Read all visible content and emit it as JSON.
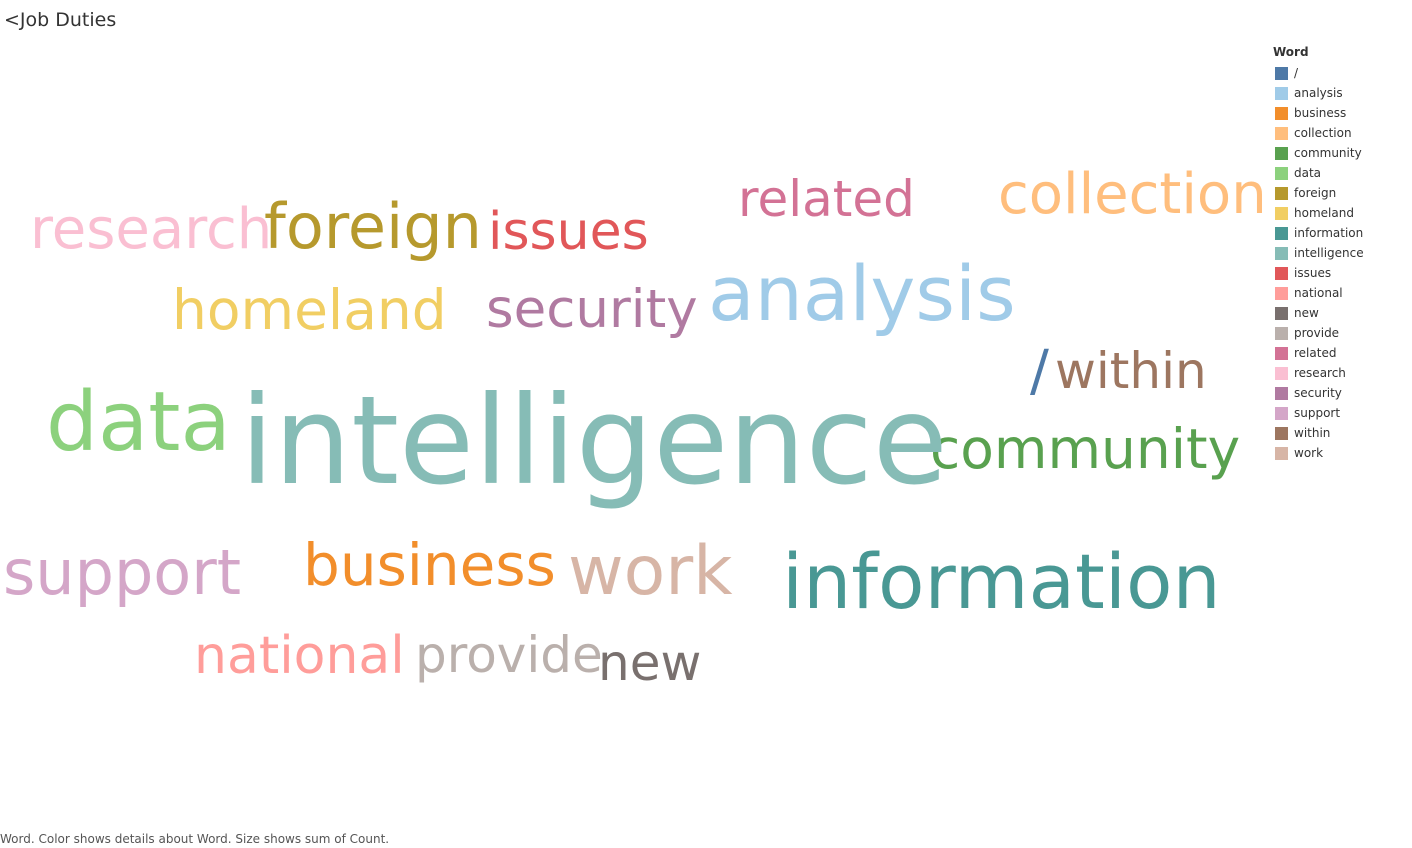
{
  "header": {
    "back_title": "<Job Duties"
  },
  "footer": {
    "caption": "Word.  Color shows details about Word.  Size shows sum of Count."
  },
  "legend": {
    "title": "Word"
  },
  "chart_data": {
    "type": "wordcloud",
    "title": "",
    "legend_placement": "right",
    "words": [
      {
        "word": "/",
        "color": "#4e79a7",
        "count": 22
      },
      {
        "word": "analysis",
        "color": "#a0cbe8",
        "count": 30
      },
      {
        "word": "business",
        "color": "#f28e2b",
        "count": 24
      },
      {
        "word": "collection",
        "color": "#ffbe7d",
        "count": 22
      },
      {
        "word": "community",
        "color": "#59a14f",
        "count": 24
      },
      {
        "word": "data",
        "color": "#8cd17d",
        "count": 32
      },
      {
        "word": "foreign",
        "color": "#b6992d",
        "count": 23
      },
      {
        "word": "homeland",
        "color": "#f1ce63",
        "count": 22
      },
      {
        "word": "information",
        "color": "#499894",
        "count": 32
      },
      {
        "word": "intelligence",
        "color": "#86bcb6",
        "count": 45
      },
      {
        "word": "issues",
        "color": "#e15759",
        "count": 22
      },
      {
        "word": "national",
        "color": "#ff9d9a",
        "count": 21
      },
      {
        "word": "new",
        "color": "#79706e",
        "count": 20
      },
      {
        "word": "provide",
        "color": "#bab0ac",
        "count": 20
      },
      {
        "word": "related",
        "color": "#d37295",
        "count": 20
      },
      {
        "word": "research",
        "color": "#fabfd2",
        "count": 22
      },
      {
        "word": "security",
        "color": "#b07aa1",
        "count": 23
      },
      {
        "word": "support",
        "color": "#d4a6c8",
        "count": 25
      },
      {
        "word": "within",
        "color": "#9d7660",
        "count": 22
      },
      {
        "word": "work",
        "color": "#d7b5a6",
        "count": 27
      }
    ]
  }
}
